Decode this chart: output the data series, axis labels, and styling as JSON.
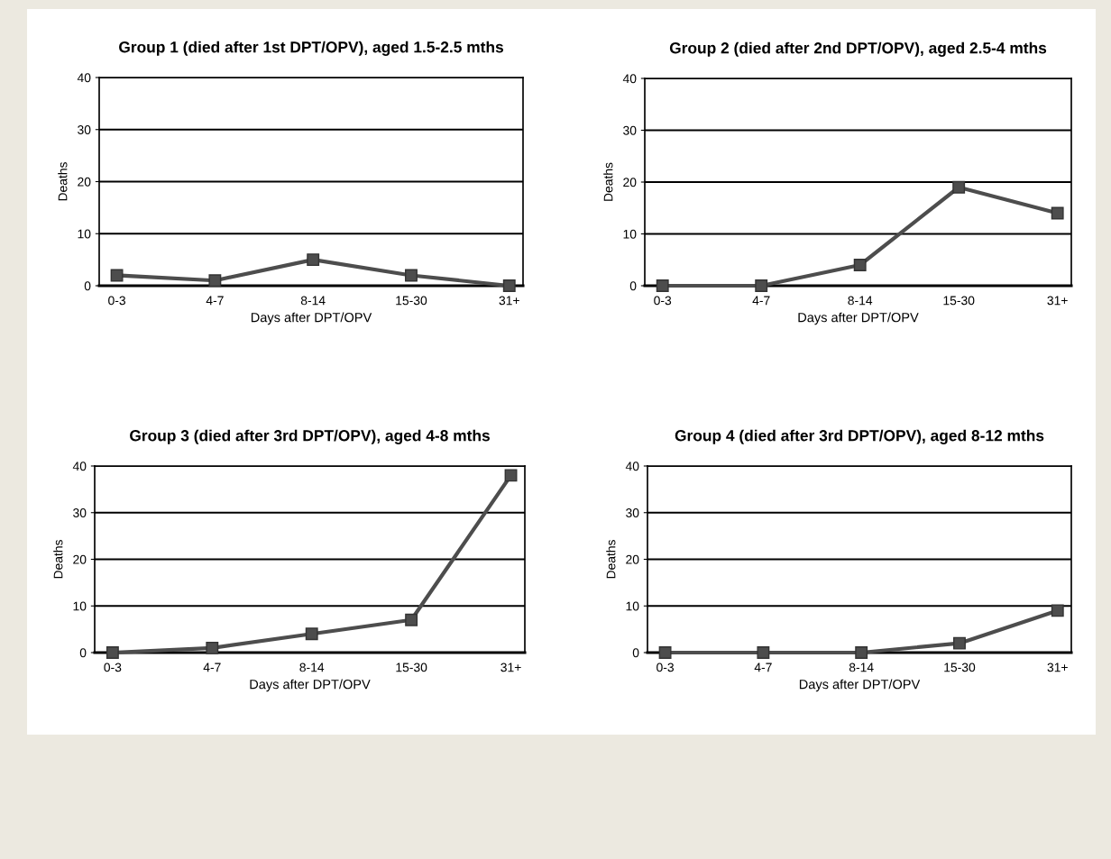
{
  "chart_data": [
    {
      "type": "line",
      "title": "Group 1 (died after 1st DPT/OPV), aged 1.5-2.5 mths",
      "xlabel": "Days after DPT/OPV",
      "ylabel": "Deaths",
      "categories": [
        "0-3",
        "4-7",
        "8-14",
        "15-30",
        "31+"
      ],
      "series": [
        {
          "color": "#4d4d4d",
          "values": [
            2,
            1,
            5,
            2,
            0
          ]
        }
      ],
      "ylim": [
        0,
        40
      ],
      "yticks": [
        0,
        10,
        20,
        30,
        40
      ],
      "grid": "y",
      "legend": false,
      "marker": "square",
      "line_style": "solid"
    },
    {
      "type": "line",
      "title": "Group 2 (died after 2nd DPT/OPV), aged 2.5-4 mths",
      "xlabel": "Days after DPT/OPV",
      "ylabel": "Deaths",
      "categories": [
        "0-3",
        "4-7",
        "8-14",
        "15-30",
        "31+"
      ],
      "series": [
        {
          "color": "#4d4d4d",
          "values": [
            0,
            0,
            4,
            19,
            14
          ]
        }
      ],
      "ylim": [
        0,
        40
      ],
      "yticks": [
        0,
        10,
        20,
        30,
        40
      ],
      "grid": "y",
      "legend": false,
      "marker": "square",
      "line_style": "solid"
    },
    {
      "type": "line",
      "title": "Group 3 (died after 3rd DPT/OPV), aged 4-8 mths",
      "xlabel": "Days after DPT/OPV",
      "ylabel": "Deaths",
      "categories": [
        "0-3",
        "4-7",
        "8-14",
        "15-30",
        "31+"
      ],
      "series": [
        {
          "color": "#4d4d4d",
          "values": [
            0,
            1,
            4,
            7,
            38
          ]
        }
      ],
      "ylim": [
        0,
        40
      ],
      "yticks": [
        0,
        10,
        20,
        30,
        40
      ],
      "grid": "y",
      "legend": false,
      "marker": "square",
      "line_style": "solid"
    },
    {
      "type": "line",
      "title": "Group 4 (died after 3rd DPT/OPV), aged 8-12 mths",
      "xlabel": "Days after DPT/OPV",
      "ylabel": "Deaths",
      "categories": [
        "0-3",
        "4-7",
        "8-14",
        "15-30",
        "31+"
      ],
      "series": [
        {
          "color": "#4d4d4d",
          "values": [
            0,
            0,
            0,
            2,
            9
          ]
        }
      ],
      "ylim": [
        0,
        40
      ],
      "yticks": [
        0,
        10,
        20,
        30,
        40
      ],
      "grid": "y",
      "legend": false,
      "marker": "square",
      "line_style": "solid"
    }
  ]
}
